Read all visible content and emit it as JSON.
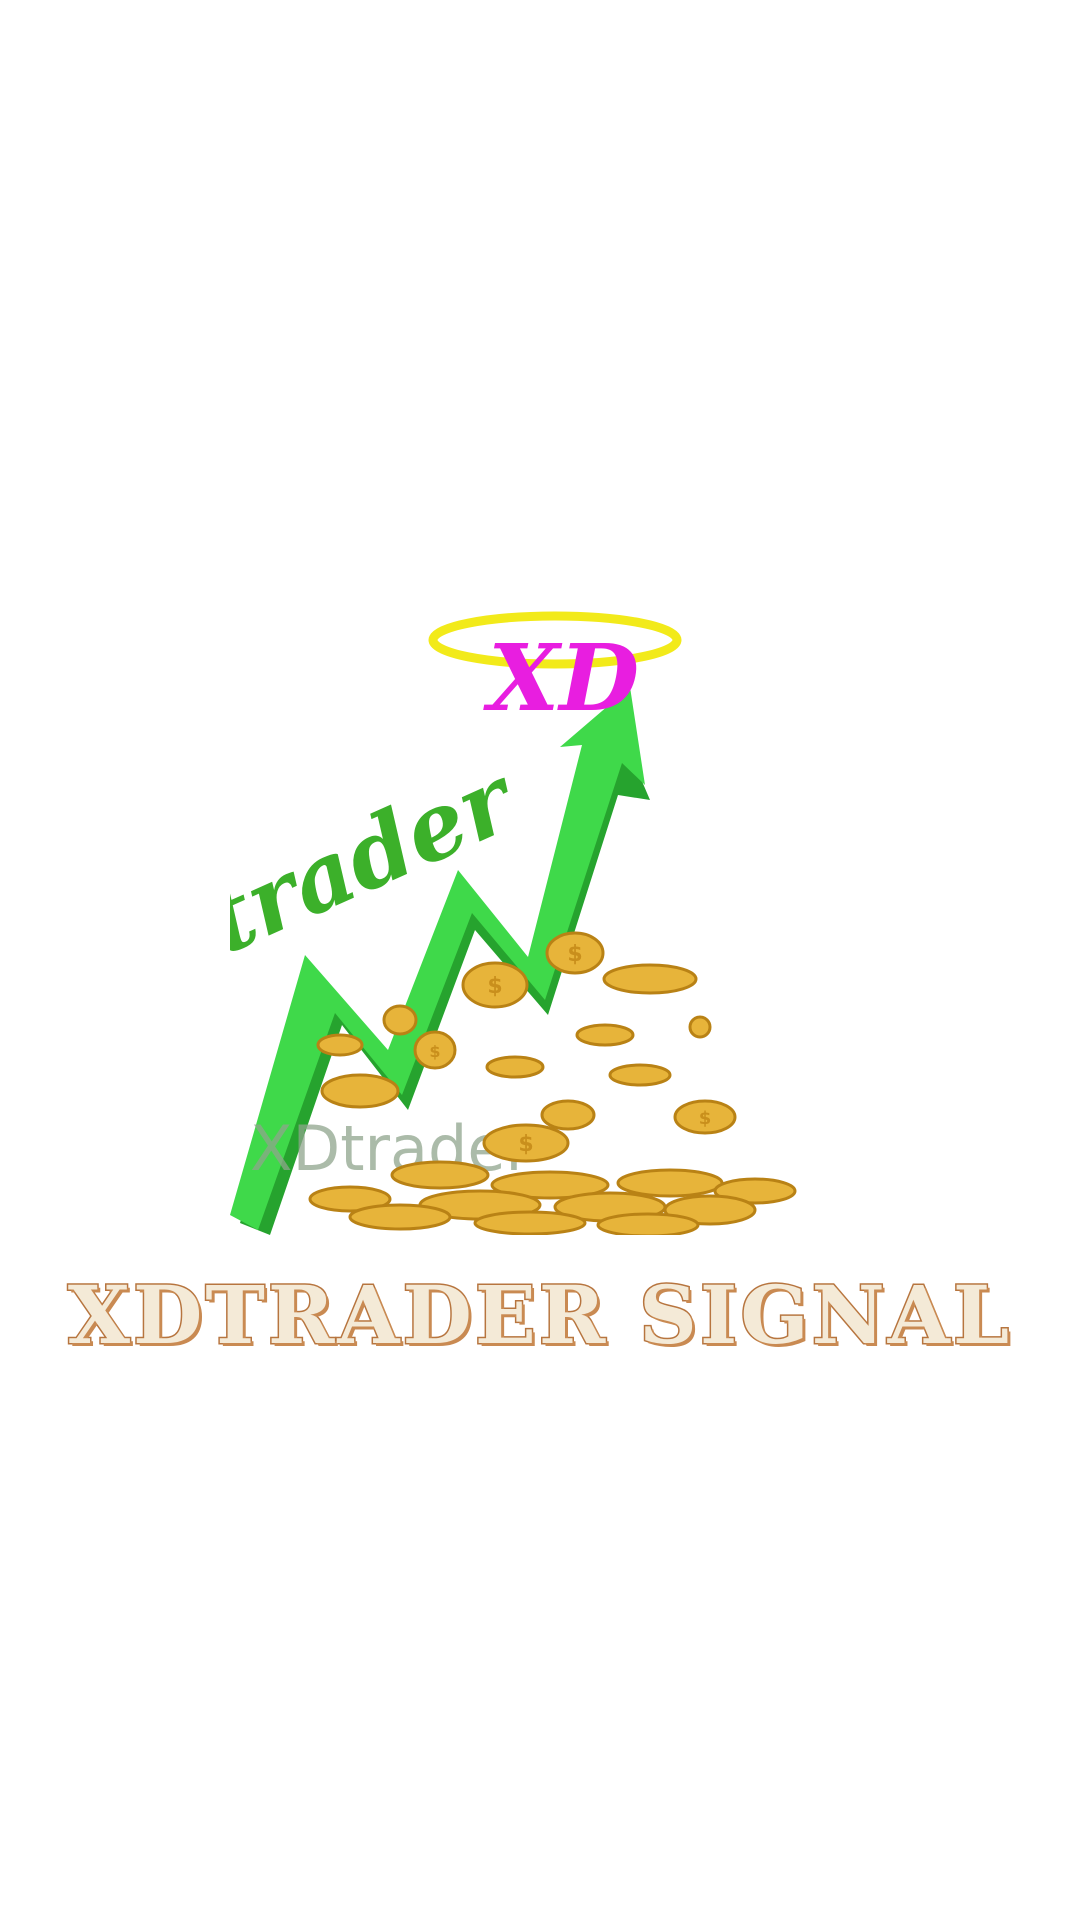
{
  "splash": {
    "app_title": "XDTRADER SIGNAL",
    "logo": {
      "badge_text": "XD",
      "script_text": "trader",
      "watermark_text": "XDtrader",
      "icon": "rising-arrow-with-coins",
      "colors": {
        "arrow": "#3fd94a",
        "arrow_shadow": "#26a32e",
        "script": "#3cb02a",
        "badge_text": "#e81ee0",
        "halo": "#f2ea1a",
        "coin": "#e7b43a",
        "coin_dark": "#b98215",
        "watermark": "#8fa48c"
      }
    },
    "colors": {
      "background": "#ffffff",
      "title_fill": "#f4ead7",
      "title_outline": "#b7753f"
    }
  }
}
